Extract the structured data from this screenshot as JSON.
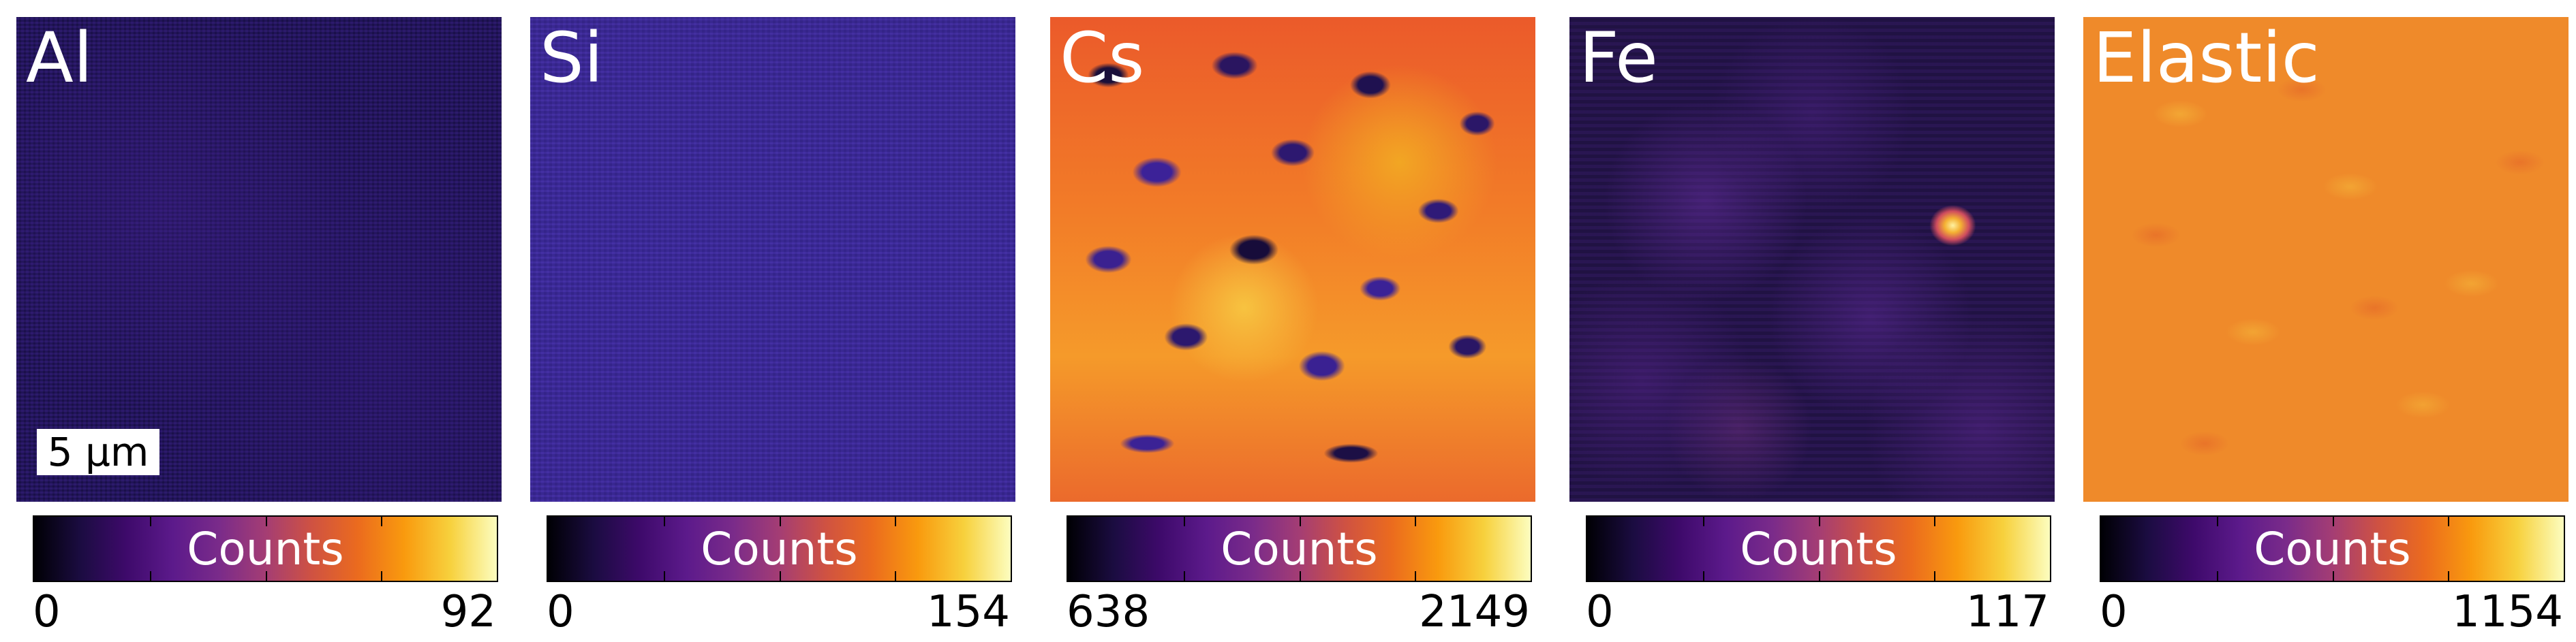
{
  "panels": [
    {
      "element": "Al",
      "colorbar": {
        "label": "Counts",
        "min": "0",
        "max": "92"
      },
      "scalebar": "5 μm"
    },
    {
      "element": "Si",
      "colorbar": {
        "label": "Counts",
        "min": "0",
        "max": "154"
      }
    },
    {
      "element": "Cs",
      "colorbar": {
        "label": "Counts",
        "min": "638",
        "max": "2149"
      }
    },
    {
      "element": "Fe",
      "colorbar": {
        "label": "Counts",
        "min": "0",
        "max": "117"
      }
    },
    {
      "element": "Elastic",
      "colorbar": {
        "label": "Counts",
        "min": "0",
        "max": "1154"
      }
    }
  ],
  "colormap": {
    "name": "inferno-like",
    "stops": [
      "#000004",
      "#3e0a6b",
      "#7a2b8a",
      "#cf5242",
      "#f99a0e",
      "#fcfdbf"
    ]
  }
}
